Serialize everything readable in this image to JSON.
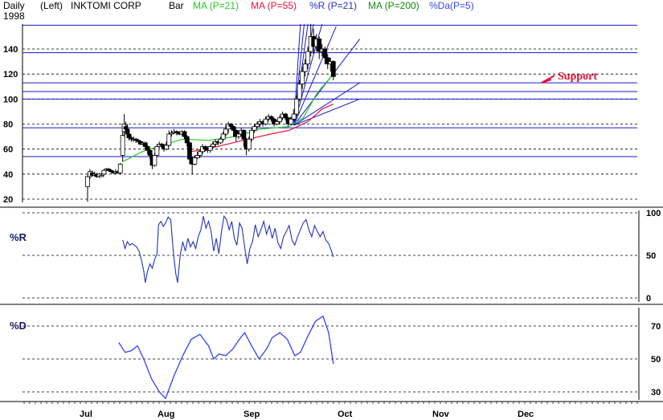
{
  "header": {
    "period": "Daily",
    "side": "(Left)",
    "symbol": "INKTOMI CORP",
    "year": "1998",
    "style": "Bar",
    "ind1": "MA (P=21)",
    "ind2": "MA (P=55)",
    "ind3": "%R (P=21)",
    "ind4": "MA (P=200)",
    "ind5": "%Da(P=5)"
  },
  "colors": {
    "ma21": "#22cc22",
    "ma55": "#ee1133",
    "pctR": "#2233bb",
    "ma200": "#118811",
    "pctD": "#3344ee",
    "blue_line": "#1a1acc",
    "grid": "#000000"
  },
  "chart_data": [
    {
      "type": "candlestick",
      "title": "INKTOMI CORP",
      "x_labels": [
        "Jul",
        "Aug",
        "Sep",
        "Oct",
        "Nov",
        "Dec"
      ],
      "ylim": [
        15,
        160
      ],
      "yticks": [
        20,
        40,
        60,
        80,
        100,
        120,
        140
      ],
      "horizontal_levels": [
        54,
        77,
        100,
        106,
        113,
        137,
        159
      ],
      "annotation": "Support",
      "candles": [
        [
          0.0,
          30,
          38,
          18,
          39
        ],
        [
          0.03,
          38,
          42,
          36,
          44
        ],
        [
          0.06,
          41,
          39,
          38,
          43
        ],
        [
          0.09,
          40,
          40,
          38,
          42
        ],
        [
          0.12,
          40,
          38,
          37,
          41
        ],
        [
          0.15,
          38,
          40,
          37,
          41
        ],
        [
          0.18,
          39,
          39,
          38,
          41
        ],
        [
          0.21,
          40,
          43,
          39,
          44
        ],
        [
          0.24,
          43,
          44,
          42,
          45
        ],
        [
          0.27,
          44,
          43,
          42,
          45
        ],
        [
          0.3,
          43,
          42,
          41,
          44
        ],
        [
          0.33,
          42,
          41,
          40,
          43
        ],
        [
          0.36,
          41,
          42,
          40,
          44
        ],
        [
          0.39,
          42,
          41,
          40,
          43
        ],
        [
          0.42,
          41,
          48,
          40,
          49
        ],
        [
          0.45,
          55,
          71,
          50,
          75
        ],
        [
          0.47,
          74,
          80,
          70,
          88
        ],
        [
          0.49,
          78,
          76,
          72,
          82
        ],
        [
          0.51,
          76,
          72,
          70,
          80
        ],
        [
          0.53,
          72,
          69,
          67,
          73
        ],
        [
          0.56,
          69,
          68,
          66,
          71
        ],
        [
          0.59,
          68,
          68,
          66,
          70
        ],
        [
          0.62,
          68,
          67,
          65,
          69
        ],
        [
          0.65,
          67,
          66,
          65,
          68
        ],
        [
          0.68,
          66,
          64,
          63,
          67
        ],
        [
          0.71,
          64,
          65,
          63,
          66
        ],
        [
          0.74,
          65,
          62,
          60,
          66
        ],
        [
          0.77,
          62,
          59,
          56,
          63
        ],
        [
          0.8,
          59,
          55,
          52,
          60
        ],
        [
          0.83,
          55,
          47,
          44,
          56
        ],
        [
          0.86,
          47,
          55,
          46,
          57
        ],
        [
          0.89,
          55,
          62,
          54,
          64
        ],
        [
          0.92,
          62,
          64,
          61,
          66
        ],
        [
          0.95,
          64,
          63,
          61,
          65
        ],
        [
          0.98,
          63,
          60,
          58,
          64
        ],
        [
          1.01,
          60,
          63,
          59,
          66
        ],
        [
          1.04,
          63,
          72,
          62,
          75
        ],
        [
          1.07,
          72,
          73,
          70,
          75
        ],
        [
          1.1,
          73,
          74,
          72,
          76
        ],
        [
          1.13,
          74,
          73,
          71,
          75
        ],
        [
          1.16,
          73,
          72,
          71,
          74
        ],
        [
          1.19,
          72,
          74,
          71,
          75
        ],
        [
          1.22,
          74,
          70,
          68,
          75
        ],
        [
          1.25,
          70,
          65,
          62,
          71
        ],
        [
          1.28,
          65,
          52,
          48,
          66
        ],
        [
          1.31,
          52,
          48,
          40,
          54
        ],
        [
          1.34,
          48,
          53,
          47,
          55
        ],
        [
          1.37,
          53,
          55,
          52,
          58
        ],
        [
          1.4,
          55,
          58,
          53,
          60
        ],
        [
          1.43,
          58,
          62,
          56,
          64
        ],
        [
          1.46,
          62,
          60,
          58,
          63
        ],
        [
          1.49,
          60,
          59,
          57,
          62
        ],
        [
          1.52,
          59,
          62,
          57,
          63
        ],
        [
          1.55,
          62,
          64,
          60,
          66
        ],
        [
          1.58,
          64,
          66,
          62,
          68
        ],
        [
          1.61,
          66,
          65,
          63,
          67
        ],
        [
          1.64,
          65,
          68,
          64,
          70
        ],
        [
          1.67,
          68,
          72,
          66,
          74
        ],
        [
          1.7,
          72,
          76,
          70,
          79
        ],
        [
          1.73,
          76,
          80,
          73,
          82
        ],
        [
          1.76,
          80,
          78,
          76,
          81
        ],
        [
          1.79,
          78,
          75,
          70,
          79
        ],
        [
          1.82,
          75,
          70,
          66,
          76
        ],
        [
          1.85,
          70,
          72,
          68,
          74
        ],
        [
          1.88,
          72,
          75,
          70,
          77
        ],
        [
          1.91,
          75,
          68,
          62,
          76
        ],
        [
          1.94,
          68,
          60,
          55,
          69
        ],
        [
          1.97,
          60,
          68,
          58,
          70
        ],
        [
          2.0,
          68,
          75,
          66,
          77
        ],
        [
          2.03,
          75,
          78,
          73,
          80
        ],
        [
          2.06,
          78,
          80,
          76,
          82
        ],
        [
          2.09,
          80,
          82,
          78,
          84
        ],
        [
          2.12,
          82,
          80,
          78,
          83
        ],
        [
          2.15,
          80,
          84,
          79,
          86
        ],
        [
          2.18,
          84,
          86,
          82,
          88
        ],
        [
          2.21,
          86,
          84,
          82,
          87
        ],
        [
          2.24,
          84,
          80,
          78,
          85
        ],
        [
          2.27,
          80,
          82,
          79,
          83
        ],
        [
          2.3,
          82,
          85,
          80,
          87
        ],
        [
          2.33,
          85,
          88,
          83,
          90
        ],
        [
          2.36,
          88,
          85,
          83,
          89
        ],
        [
          2.39,
          85,
          80,
          78,
          86
        ],
        [
          2.42,
          80,
          84,
          79,
          86
        ],
        [
          2.45,
          84,
          88,
          82,
          92
        ],
        [
          2.48,
          88,
          100,
          86,
          103
        ],
        [
          2.51,
          100,
          112,
          98,
          115
        ],
        [
          2.54,
          112,
          122,
          108,
          126
        ],
        [
          2.57,
          122,
          128,
          118,
          132
        ],
        [
          2.6,
          128,
          138,
          124,
          142
        ],
        [
          2.63,
          138,
          150,
          134,
          160
        ],
        [
          2.66,
          150,
          142,
          136,
          156
        ],
        [
          2.69,
          142,
          148,
          138,
          152
        ],
        [
          2.72,
          148,
          138,
          132,
          150
        ],
        [
          2.75,
          138,
          140,
          134,
          144
        ],
        [
          2.78,
          140,
          133,
          128,
          142
        ],
        [
          2.81,
          133,
          128,
          124,
          136
        ],
        [
          2.84,
          128,
          130,
          122,
          133
        ],
        [
          2.87,
          130,
          118,
          115,
          131
        ]
      ],
      "ma21": [
        [
          0.45,
          50
        ],
        [
          0.7,
          58
        ],
        [
          0.9,
          62
        ],
        [
          1.2,
          68
        ],
        [
          1.5,
          67
        ],
        [
          1.8,
          70
        ],
        [
          2.1,
          76
        ],
        [
          2.4,
          78
        ],
        [
          2.55,
          85
        ],
        [
          2.7,
          105
        ],
        [
          2.87,
          120
        ]
      ],
      "ma55": [
        [
          1.3,
          58
        ],
        [
          1.6,
          62
        ],
        [
          1.9,
          67
        ],
        [
          2.2,
          72
        ],
        [
          2.4,
          75
        ],
        [
          2.6,
          82
        ],
        [
          2.75,
          92
        ],
        [
          2.87,
          96
        ]
      ],
      "fan_origin": [
        2.45,
        79
      ],
      "fan_targets": [
        [
          2.52,
          160
        ],
        [
          2.56,
          160
        ],
        [
          2.6,
          160
        ],
        [
          2.66,
          160
        ],
        [
          2.75,
          160
        ],
        [
          2.9,
          158
        ],
        [
          3.15,
          148
        ],
        [
          3.15,
          113
        ],
        [
          3.15,
          100
        ]
      ]
    },
    {
      "type": "line",
      "title": "%R (P=21)",
      "ylim": [
        0,
        100
      ],
      "yticks": [
        0,
        50,
        100
      ],
      "values": [
        [
          0.45,
          68
        ],
        [
          0.48,
          58
        ],
        [
          0.51,
          66
        ],
        [
          0.54,
          62
        ],
        [
          0.57,
          64
        ],
        [
          0.6,
          62
        ],
        [
          0.63,
          60
        ],
        [
          0.66,
          55
        ],
        [
          0.69,
          45
        ],
        [
          0.72,
          32
        ],
        [
          0.74,
          18
        ],
        [
          0.77,
          32
        ],
        [
          0.8,
          40
        ],
        [
          0.83,
          35
        ],
        [
          0.86,
          45
        ],
        [
          0.89,
          52
        ],
        [
          0.91,
          86
        ],
        [
          0.94,
          90
        ],
        [
          0.97,
          84
        ],
        [
          1.0,
          88
        ],
        [
          1.03,
          95
        ],
        [
          1.06,
          92
        ],
        [
          1.09,
          55
        ],
        [
          1.12,
          28
        ],
        [
          1.14,
          18
        ],
        [
          1.17,
          50
        ],
        [
          1.2,
          66
        ],
        [
          1.23,
          55
        ],
        [
          1.26,
          70
        ],
        [
          1.29,
          60
        ],
        [
          1.32,
          66
        ],
        [
          1.35,
          58
        ],
        [
          1.38,
          72
        ],
        [
          1.41,
          80
        ],
        [
          1.44,
          96
        ],
        [
          1.47,
          82
        ],
        [
          1.5,
          90
        ],
        [
          1.53,
          78
        ],
        [
          1.56,
          55
        ],
        [
          1.59,
          70
        ],
        [
          1.62,
          52
        ],
        [
          1.65,
          78
        ],
        [
          1.68,
          96
        ],
        [
          1.71,
          92
        ],
        [
          1.74,
          80
        ],
        [
          1.77,
          90
        ],
        [
          1.8,
          70
        ],
        [
          1.83,
          62
        ],
        [
          1.86,
          88
        ],
        [
          1.89,
          82
        ],
        [
          1.92,
          60
        ],
        [
          1.95,
          40
        ],
        [
          1.98,
          58
        ],
        [
          2.01,
          66
        ],
        [
          2.04,
          86
        ],
        [
          2.07,
          72
        ],
        [
          2.1,
          80
        ],
        [
          2.13,
          90
        ],
        [
          2.16,
          75
        ],
        [
          2.19,
          85
        ],
        [
          2.22,
          70
        ],
        [
          2.25,
          82
        ],
        [
          2.28,
          65
        ],
        [
          2.31,
          58
        ],
        [
          2.34,
          72
        ],
        [
          2.37,
          78
        ],
        [
          2.4,
          85
        ],
        [
          2.43,
          68
        ],
        [
          2.46,
          62
        ],
        [
          2.49,
          72
        ],
        [
          2.52,
          80
        ],
        [
          2.55,
          88
        ],
        [
          2.58,
          92
        ],
        [
          2.61,
          80
        ],
        [
          2.64,
          72
        ],
        [
          2.67,
          85
        ],
        [
          2.7,
          78
        ],
        [
          2.73,
          72
        ],
        [
          2.76,
          78
        ],
        [
          2.79,
          68
        ],
        [
          2.82,
          64
        ],
        [
          2.85,
          55
        ],
        [
          2.87,
          48
        ]
      ]
    },
    {
      "type": "line",
      "title": "%Da(P=5)",
      "ylim": [
        25,
        80
      ],
      "yticks": [
        30,
        50,
        70
      ],
      "values": [
        [
          0.4,
          60
        ],
        [
          0.48,
          54
        ],
        [
          0.56,
          55
        ],
        [
          0.64,
          58
        ],
        [
          0.72,
          50
        ],
        [
          0.82,
          38
        ],
        [
          0.92,
          30
        ],
        [
          1.0,
          26
        ],
        [
          1.1,
          40
        ],
        [
          1.2,
          52
        ],
        [
          1.3,
          62
        ],
        [
          1.4,
          65
        ],
        [
          1.5,
          58
        ],
        [
          1.56,
          50
        ],
        [
          1.62,
          53
        ],
        [
          1.7,
          52
        ],
        [
          1.78,
          56
        ],
        [
          1.86,
          62
        ],
        [
          1.92,
          66
        ],
        [
          2.0,
          58
        ],
        [
          2.08,
          50
        ],
        [
          2.16,
          56
        ],
        [
          2.22,
          63
        ],
        [
          2.3,
          66
        ],
        [
          2.38,
          62
        ],
        [
          2.46,
          52
        ],
        [
          2.52,
          54
        ],
        [
          2.6,
          64
        ],
        [
          2.68,
          73
        ],
        [
          2.76,
          76
        ],
        [
          2.82,
          66
        ],
        [
          2.87,
          47
        ]
      ]
    }
  ]
}
